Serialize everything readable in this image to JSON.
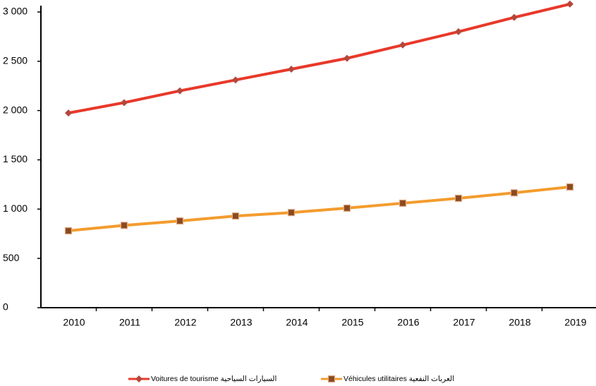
{
  "chart_data": {
    "type": "line",
    "categories": [
      "2010",
      "2011",
      "2012",
      "2013",
      "2014",
      "2015",
      "2016",
      "2017",
      "2018",
      "2019"
    ],
    "series": [
      {
        "name": "Voitures de tourisme السيارات السياحية",
        "color": "#e8392a",
        "marker_color": "#b5473c",
        "marker": "diamond",
        "values": [
          1975,
          2080,
          2200,
          2310,
          2420,
          2530,
          2665,
          2800,
          2945,
          3080
        ]
      },
      {
        "name": "Véhicules utilitaires العربات النفعية",
        "color": "#f39c2e",
        "marker_color": "#8b4a1e",
        "marker": "square",
        "values": [
          780,
          835,
          880,
          930,
          965,
          1010,
          1060,
          1110,
          1165,
          1225
        ]
      }
    ],
    "ylim": [
      0,
      3100
    ],
    "yticks": [
      0,
      500,
      {
        "value": 1000,
        "label": "1 000"
      },
      {
        "value": 1500,
        "label": "1 500"
      },
      {
        "value": 2000,
        "label": "2 000"
      },
      {
        "value": 2500,
        "label": "2 500"
      },
      {
        "value": 3000,
        "label": "3 000"
      }
    ],
    "grid": false,
    "legend": "bottom"
  }
}
